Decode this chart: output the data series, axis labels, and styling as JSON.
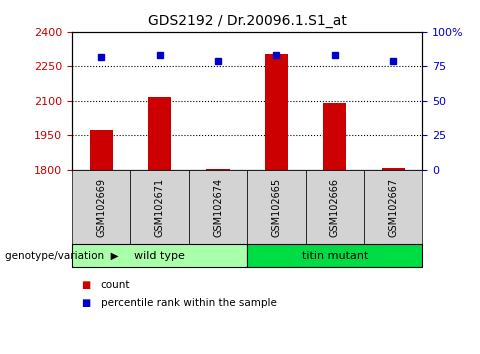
{
  "title": "GDS2192 / Dr.20096.1.S1_at",
  "samples": [
    "GSM102669",
    "GSM102671",
    "GSM102674",
    "GSM102665",
    "GSM102666",
    "GSM102667"
  ],
  "count_values": [
    1975,
    2115,
    1805,
    2305,
    2090,
    1810
  ],
  "percentile_values": [
    82,
    83,
    79,
    83,
    83,
    79
  ],
  "ylim_left": [
    1800,
    2400
  ],
  "ylim_right": [
    0,
    100
  ],
  "yticks_left": [
    1800,
    1950,
    2100,
    2250,
    2400
  ],
  "yticks_right": [
    0,
    25,
    50,
    75,
    100
  ],
  "ytick_labels_right": [
    "0",
    "25",
    "50",
    "75",
    "100%"
  ],
  "bar_color": "#cc0000",
  "marker_color": "#0000cc",
  "left_tick_color": "#cc0000",
  "right_tick_color": "#0000cc",
  "groups": [
    {
      "label": "wild type",
      "indices": [
        0,
        1,
        2
      ],
      "color": "#aaffaa"
    },
    {
      "label": "titin mutant",
      "indices": [
        3,
        4,
        5
      ],
      "color": "#00dd44"
    }
  ],
  "group_label_prefix": "genotype/variation",
  "legend_count_label": "count",
  "legend_percentile_label": "percentile rank within the sample",
  "dotted_line_color": "#000000",
  "background_color": "#ffffff",
  "plot_bg_color": "#ffffff",
  "sample_box_color": "#d3d3d3",
  "base_value": 1800,
  "figsize": [
    4.8,
    3.54
  ],
  "dpi": 100
}
